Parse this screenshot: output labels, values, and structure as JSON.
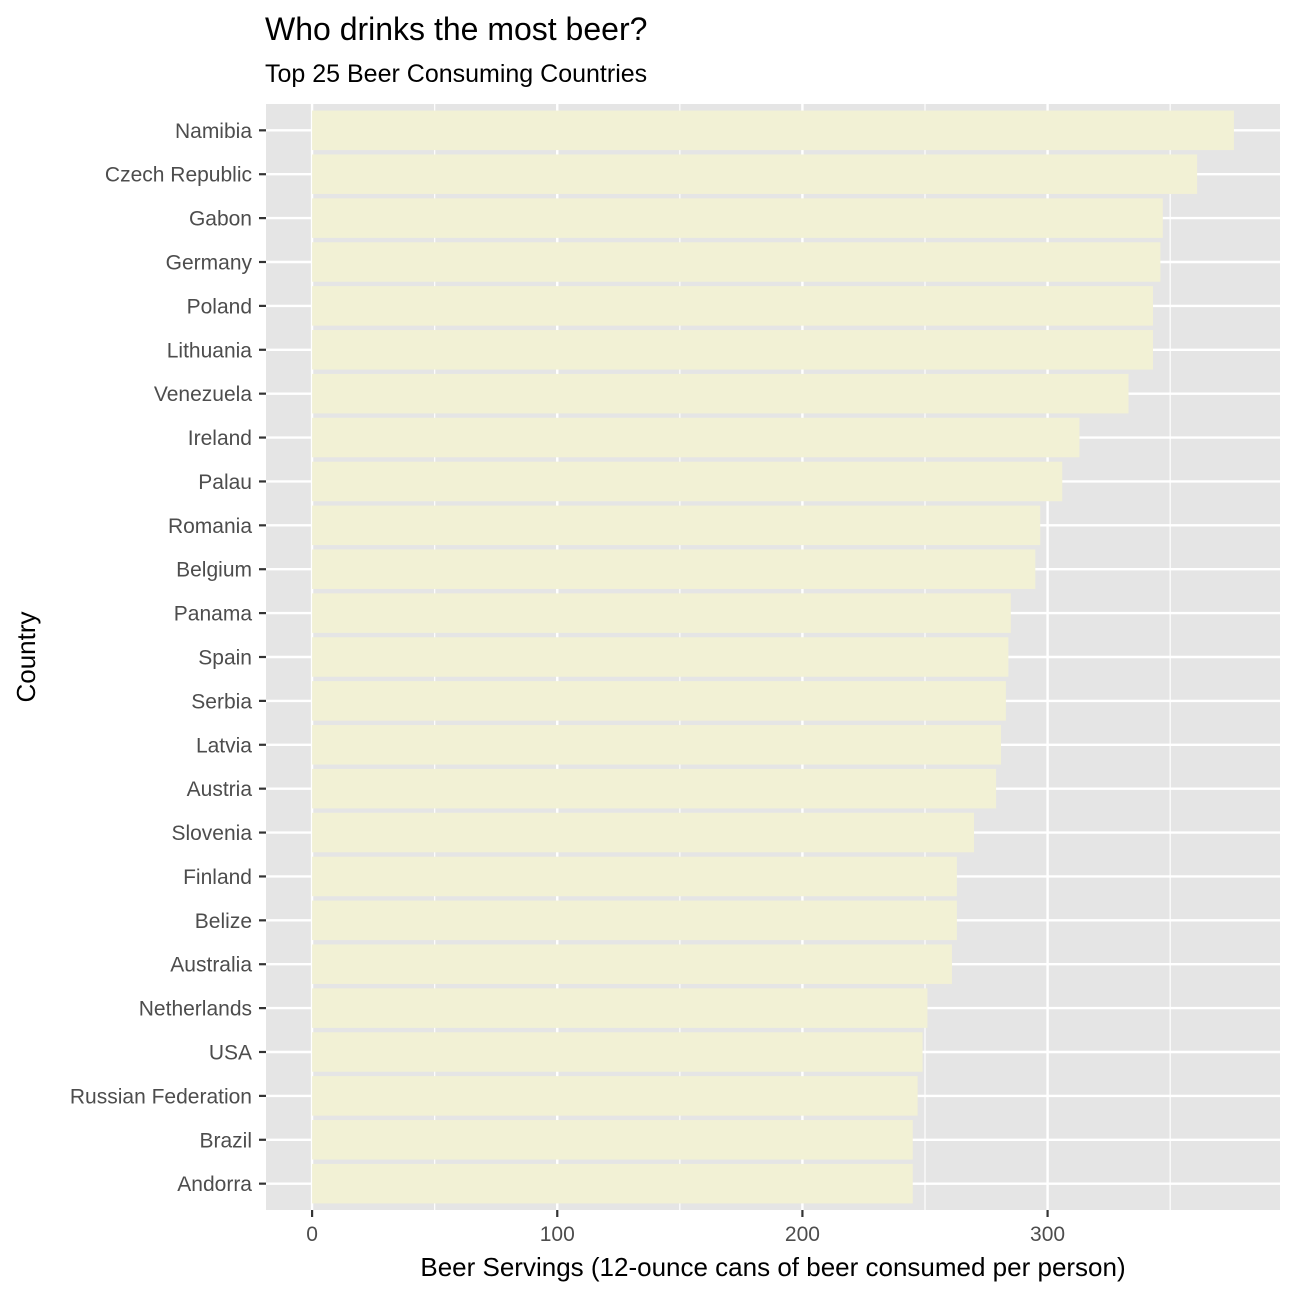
{
  "chart_data": {
    "type": "bar",
    "orientation": "horizontal",
    "title": "Who drinks the most beer?",
    "subtitle": "Top 25 Beer Consuming Countries",
    "xlabel": "Beer Servings (12-ounce cans of beer consumed per person)",
    "ylabel": "Country",
    "categories": [
      "Namibia",
      "Czech Republic",
      "Gabon",
      "Germany",
      "Poland",
      "Lithuania",
      "Venezuela",
      "Ireland",
      "Palau",
      "Romania",
      "Belgium",
      "Panama",
      "Spain",
      "Serbia",
      "Latvia",
      "Austria",
      "Slovenia",
      "Finland",
      "Belize",
      "Australia",
      "Netherlands",
      "USA",
      "Russian Federation",
      "Brazil",
      "Andorra"
    ],
    "values": [
      376,
      361,
      347,
      346,
      343,
      343,
      333,
      313,
      306,
      297,
      295,
      285,
      284,
      283,
      281,
      279,
      270,
      263,
      263,
      261,
      251,
      249,
      247,
      245,
      245
    ],
    "x_ticks": [
      0,
      100,
      200,
      300
    ],
    "xlim": [
      -18.8,
      394.8
    ],
    "grid": true,
    "legend": "none",
    "colors": {
      "panel": "#e5e5e5",
      "grid": "#ffffff",
      "bar_fill": "#f2f1d5"
    }
  }
}
